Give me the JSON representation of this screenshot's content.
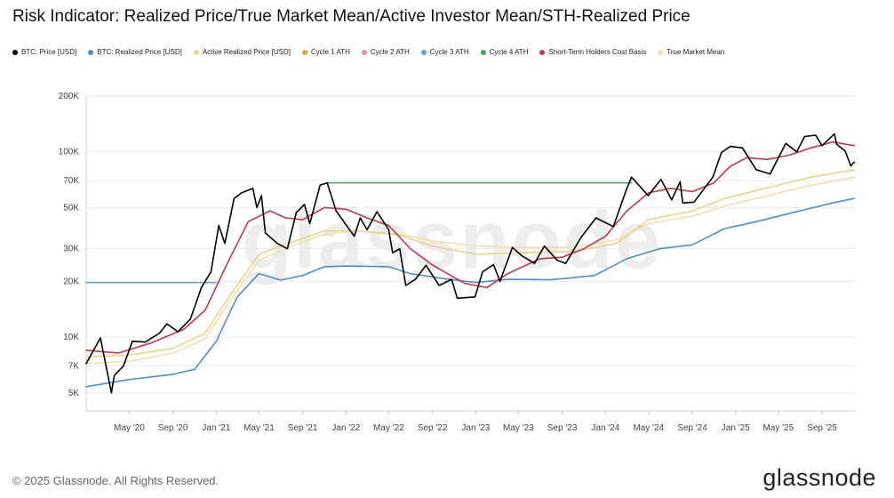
{
  "chart_data": {
    "type": "line",
    "title": "Risk Indicator: Realized Price/True Market Mean/Active Investor Mean/STH-Realized Price",
    "xlabel": "",
    "ylabel": "",
    "y_scale": "log",
    "ylim": [
      4000,
      200000
    ],
    "xlim": [
      "2020-01-01",
      "2025-12-05"
    ],
    "y_ticks": [
      {
        "value": 5000,
        "label": "5K"
      },
      {
        "value": 7000,
        "label": "7K"
      },
      {
        "value": 10000,
        "label": "10K"
      },
      {
        "value": 20000,
        "label": "20K"
      },
      {
        "value": 30000,
        "label": "30K"
      },
      {
        "value": 50000,
        "label": "50K"
      },
      {
        "value": 70000,
        "label": "70K"
      },
      {
        "value": 100000,
        "label": "100K"
      },
      {
        "value": 200000,
        "label": "200K"
      }
    ],
    "x_ticks": [
      {
        "date": "2020-05-01",
        "label": "May '20"
      },
      {
        "date": "2020-09-01",
        "label": "Sep '20"
      },
      {
        "date": "2021-01-01",
        "label": "Jan '21"
      },
      {
        "date": "2021-05-01",
        "label": "May '21"
      },
      {
        "date": "2021-09-01",
        "label": "Sep '21"
      },
      {
        "date": "2022-01-01",
        "label": "Jan '22"
      },
      {
        "date": "2022-05-01",
        "label": "May '22"
      },
      {
        "date": "2022-09-01",
        "label": "Sep '22"
      },
      {
        "date": "2023-01-01",
        "label": "Jan '23"
      },
      {
        "date": "2023-05-01",
        "label": "May '23"
      },
      {
        "date": "2023-09-01",
        "label": "Sep '23"
      },
      {
        "date": "2024-01-01",
        "label": "Jan '24"
      },
      {
        "date": "2024-05-01",
        "label": "May '24"
      },
      {
        "date": "2024-09-01",
        "label": "Sep '24"
      },
      {
        "date": "2025-01-01",
        "label": "Jan '25"
      },
      {
        "date": "2025-05-01",
        "label": "May '25"
      },
      {
        "date": "2025-09-01",
        "label": "Sep '25"
      }
    ],
    "grid": true,
    "legend_position": "top-left",
    "series": [
      {
        "name": "BTC: Price [USD]",
        "color": "#000000",
        "points": [
          [
            "2020-01-01",
            7200
          ],
          [
            "2020-02-10",
            9900
          ],
          [
            "2020-03-12",
            5000
          ],
          [
            "2020-03-20",
            6200
          ],
          [
            "2020-04-15",
            7000
          ],
          [
            "2020-05-10",
            9500
          ],
          [
            "2020-06-15",
            9400
          ],
          [
            "2020-07-25",
            10500
          ],
          [
            "2020-08-15",
            11800
          ],
          [
            "2020-09-15",
            10700
          ],
          [
            "2020-10-20",
            12500
          ],
          [
            "2020-11-20",
            18500
          ],
          [
            "2020-12-17",
            22500
          ],
          [
            "2021-01-08",
            40000
          ],
          [
            "2021-01-25",
            32000
          ],
          [
            "2021-02-20",
            56000
          ],
          [
            "2021-03-13",
            60000
          ],
          [
            "2021-04-14",
            63500
          ],
          [
            "2021-04-25",
            50000
          ],
          [
            "2021-05-08",
            58000
          ],
          [
            "2021-05-19",
            36500
          ],
          [
            "2021-06-22",
            32000
          ],
          [
            "2021-07-20",
            30000
          ],
          [
            "2021-08-14",
            47000
          ],
          [
            "2021-09-06",
            52000
          ],
          [
            "2021-09-21",
            41000
          ],
          [
            "2021-10-20",
            66000
          ],
          [
            "2021-11-09",
            68000
          ],
          [
            "2021-12-04",
            48000
          ],
          [
            "2022-01-24",
            35000
          ],
          [
            "2022-02-10",
            44000
          ],
          [
            "2022-03-01",
            38000
          ],
          [
            "2022-03-29",
            47500
          ],
          [
            "2022-05-01",
            38000
          ],
          [
            "2022-05-12",
            28500
          ],
          [
            "2022-06-01",
            30000
          ],
          [
            "2022-06-18",
            19000
          ],
          [
            "2022-07-15",
            20500
          ],
          [
            "2022-08-14",
            24400
          ],
          [
            "2022-09-20",
            19000
          ],
          [
            "2022-10-25",
            20500
          ],
          [
            "2022-11-10",
            16200
          ],
          [
            "2022-12-30",
            16500
          ],
          [
            "2023-01-20",
            22500
          ],
          [
            "2023-02-20",
            24600
          ],
          [
            "2023-03-10",
            20000
          ],
          [
            "2023-04-14",
            30500
          ],
          [
            "2023-05-10",
            27500
          ],
          [
            "2023-06-15",
            25000
          ],
          [
            "2023-07-13",
            31000
          ],
          [
            "2023-08-18",
            26000
          ],
          [
            "2023-09-11",
            25000
          ],
          [
            "2023-10-24",
            34500
          ],
          [
            "2023-12-05",
            44000
          ],
          [
            "2024-01-23",
            39500
          ],
          [
            "2024-02-28",
            62000
          ],
          [
            "2024-03-14",
            73000
          ],
          [
            "2024-04-30",
            58000
          ],
          [
            "2024-06-05",
            71000
          ],
          [
            "2024-07-05",
            55000
          ],
          [
            "2024-07-29",
            69000
          ],
          [
            "2024-08-05",
            53000
          ],
          [
            "2024-09-06",
            53500
          ],
          [
            "2024-10-29",
            73000
          ],
          [
            "2024-11-22",
            99000
          ],
          [
            "2024-12-17",
            107000
          ],
          [
            "2025-01-20",
            105000
          ],
          [
            "2025-02-28",
            80000
          ],
          [
            "2025-04-08",
            76000
          ],
          [
            "2025-05-22",
            111000
          ],
          [
            "2025-06-22",
            100000
          ],
          [
            "2025-07-14",
            121000
          ],
          [
            "2025-08-14",
            123000
          ],
          [
            "2025-09-01",
            108000
          ],
          [
            "2025-10-06",
            125000
          ],
          [
            "2025-10-12",
            110000
          ],
          [
            "2025-11-05",
            101000
          ],
          [
            "2025-11-21",
            84000
          ],
          [
            "2025-12-01",
            88000
          ]
        ]
      },
      {
        "name": "BTC: Realized Price [USD]",
        "color": "#4e8fc8",
        "points": [
          [
            "2020-01-01",
            5400
          ],
          [
            "2020-05-01",
            5900
          ],
          [
            "2020-09-01",
            6300
          ],
          [
            "2020-11-01",
            6700
          ],
          [
            "2021-01-01",
            9500
          ],
          [
            "2021-03-01",
            16500
          ],
          [
            "2021-05-01",
            22000
          ],
          [
            "2021-07-01",
            20300
          ],
          [
            "2021-09-01",
            21500
          ],
          [
            "2021-11-01",
            24000
          ],
          [
            "2022-01-01",
            24200
          ],
          [
            "2022-05-01",
            24000
          ],
          [
            "2022-07-01",
            22000
          ],
          [
            "2022-10-01",
            20700
          ],
          [
            "2023-01-01",
            19700
          ],
          [
            "2023-04-01",
            20500
          ],
          [
            "2023-08-01",
            20400
          ],
          [
            "2023-12-01",
            21500
          ],
          [
            "2024-03-01",
            26500
          ],
          [
            "2024-06-01",
            30000
          ],
          [
            "2024-09-01",
            31500
          ],
          [
            "2024-12-01",
            38500
          ],
          [
            "2025-03-01",
            42000
          ],
          [
            "2025-07-01",
            48000
          ],
          [
            "2025-10-01",
            53000
          ],
          [
            "2025-12-01",
            56000
          ]
        ]
      },
      {
        "name": "Active Realized Price [USD]",
        "color": "#e6d58a",
        "points": [
          [
            "2020-01-01",
            7800
          ],
          [
            "2020-05-01",
            8000
          ],
          [
            "2020-09-01",
            8700
          ],
          [
            "2020-12-01",
            10500
          ],
          [
            "2021-02-01",
            16000
          ],
          [
            "2021-05-01",
            28000
          ],
          [
            "2021-08-01",
            32500
          ],
          [
            "2021-11-01",
            37500
          ],
          [
            "2022-02-01",
            37500
          ],
          [
            "2022-06-01",
            35500
          ],
          [
            "2022-09-01",
            31000
          ],
          [
            "2023-01-01",
            28000
          ],
          [
            "2023-05-01",
            28500
          ],
          [
            "2023-10-01",
            29000
          ],
          [
            "2024-02-01",
            32000
          ],
          [
            "2024-05-01",
            43000
          ],
          [
            "2024-09-01",
            48000
          ],
          [
            "2024-12-01",
            56000
          ],
          [
            "2025-04-01",
            64000
          ],
          [
            "2025-08-01",
            73000
          ],
          [
            "2025-12-01",
            80000
          ]
        ]
      },
      {
        "name": "Cycle 1 ATH",
        "color": "#e3a53a",
        "points": []
      },
      {
        "name": "Cycle 2 ATH",
        "color": "#e98aa0",
        "points": []
      },
      {
        "name": "Cycle 3 ATH",
        "color": "#6a9fd8",
        "points": [
          [
            "2020-01-01",
            19700
          ],
          [
            "2021-01-01",
            19700
          ]
        ]
      },
      {
        "name": "Cycle 4 ATH",
        "color": "#3ea65c",
        "points": [
          [
            "2021-11-10",
            68000
          ],
          [
            "2024-03-14",
            68000
          ]
        ]
      },
      {
        "name": "Short-Term Holders Cost Basis",
        "color": "#c0394d",
        "points": [
          [
            "2020-01-01",
            8500
          ],
          [
            "2020-04-01",
            8200
          ],
          [
            "2020-07-01",
            9300
          ],
          [
            "2020-10-01",
            11000
          ],
          [
            "2020-12-01",
            14000
          ],
          [
            "2021-02-01",
            25000
          ],
          [
            "2021-04-01",
            42000
          ],
          [
            "2021-06-01",
            48000
          ],
          [
            "2021-07-15",
            44000
          ],
          [
            "2021-09-01",
            43000
          ],
          [
            "2021-11-01",
            50000
          ],
          [
            "2022-01-01",
            49000
          ],
          [
            "2022-03-01",
            44000
          ],
          [
            "2022-05-01",
            40000
          ],
          [
            "2022-07-01",
            30000
          ],
          [
            "2022-09-01",
            24500
          ],
          [
            "2022-12-01",
            19500
          ],
          [
            "2023-02-01",
            18500
          ],
          [
            "2023-04-01",
            22000
          ],
          [
            "2023-07-01",
            26500
          ],
          [
            "2023-09-01",
            27000
          ],
          [
            "2023-11-01",
            30000
          ],
          [
            "2024-01-01",
            35000
          ],
          [
            "2024-03-01",
            48000
          ],
          [
            "2024-05-01",
            60000
          ],
          [
            "2024-07-01",
            63500
          ],
          [
            "2024-09-01",
            61000
          ],
          [
            "2024-11-01",
            68000
          ],
          [
            "2024-12-15",
            83000
          ],
          [
            "2025-02-01",
            93000
          ],
          [
            "2025-04-01",
            91000
          ],
          [
            "2025-06-01",
            96000
          ],
          [
            "2025-08-01",
            105000
          ],
          [
            "2025-10-01",
            113000
          ],
          [
            "2025-12-01",
            108000
          ]
        ]
      },
      {
        "name": "True Market Mean",
        "color": "#f0dfb0",
        "points": [
          [
            "2020-01-01",
            7200
          ],
          [
            "2020-05-01",
            7400
          ],
          [
            "2020-09-01",
            8200
          ],
          [
            "2020-12-01",
            9800
          ],
          [
            "2021-02-01",
            15000
          ],
          [
            "2021-05-01",
            26000
          ],
          [
            "2021-08-01",
            31000
          ],
          [
            "2021-11-01",
            36000
          ],
          [
            "2022-02-01",
            37500
          ],
          [
            "2022-06-01",
            36000
          ],
          [
            "2022-09-01",
            33000
          ],
          [
            "2023-01-01",
            31000
          ],
          [
            "2023-05-01",
            30500
          ],
          [
            "2023-10-01",
            30500
          ],
          [
            "2024-02-01",
            33500
          ],
          [
            "2024-05-01",
            41000
          ],
          [
            "2024-09-01",
            45000
          ],
          [
            "2024-12-01",
            51000
          ],
          [
            "2025-04-01",
            58000
          ],
          [
            "2025-08-01",
            66000
          ],
          [
            "2025-12-01",
            73000
          ]
        ]
      }
    ]
  },
  "footer": {
    "copyright": "© 2025 Glassnode. All Rights Reserved.",
    "brand": "glassnode",
    "watermark": "glassnode"
  }
}
